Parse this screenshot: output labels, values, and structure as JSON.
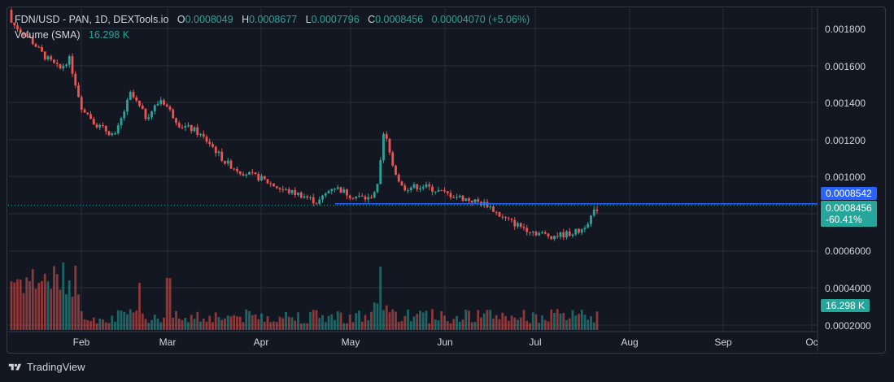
{
  "header": {
    "symbol": "FDN/USD - PAN, 1D, DEXTools.io",
    "o_label": "O",
    "o_value": "0.0008049",
    "h_label": "H",
    "h_value": "0.0008677",
    "l_label": "L",
    "l_value": "0.0007796",
    "c_label": "C",
    "c_value": "0.0008456",
    "change": "0.00004070 (+5.06%)"
  },
  "volume_legend": {
    "label": "Volume (SMA)",
    "value": "16.298 K"
  },
  "price_axis": [
    "0.001800",
    "0.001600",
    "0.001400",
    "0.001200",
    "0.001000",
    "0.0006000",
    "0.0004000",
    "0.0002000"
  ],
  "badges": {
    "line_price": "0.0008542",
    "last_price": "0.0008456",
    "last_change": "-60.41%",
    "volume": "16.298 K"
  },
  "time_axis": [
    "Feb",
    "Mar",
    "Apr",
    "May",
    "Jun",
    "Jul",
    "Aug",
    "Sep",
    "Oc"
  ],
  "footer": {
    "brand": "TradingView"
  },
  "colors": {
    "up": "#26a69a",
    "down": "#ef5350",
    "line": "#2962ff",
    "bg": "#131722",
    "grid": "#2a2e39"
  },
  "chart_data": {
    "type": "candlestick",
    "title": "FDN/USD - PAN, 1D, DEXTools.io",
    "ylim": [
      0.0002,
      0.0019
    ],
    "horizontal_line": 0.0008542,
    "x_range": [
      "Jan 5",
      "Oct 1"
    ],
    "ohlc_daily_close": [
      {
        "t": "Jan 5",
        "c": 0.0019
      },
      {
        "t": "Jan 10",
        "c": 0.00182
      },
      {
        "t": "Jan 15",
        "c": 0.00175
      },
      {
        "t": "Jan 20",
        "c": 0.00165
      },
      {
        "t": "Jan 25",
        "c": 0.00158
      },
      {
        "t": "Jan 28",
        "c": 0.00164
      },
      {
        "t": "Feb 1",
        "c": 0.00138
      },
      {
        "t": "Feb 6",
        "c": 0.00128
      },
      {
        "t": "Feb 12",
        "c": 0.00122
      },
      {
        "t": "Feb 17",
        "c": 0.00145
      },
      {
        "t": "Feb 22",
        "c": 0.00132
      },
      {
        "t": "Feb 27",
        "c": 0.00142
      },
      {
        "t": "Mar 5",
        "c": 0.00128
      },
      {
        "t": "Mar 10",
        "c": 0.00125
      },
      {
        "t": "Mar 15",
        "c": 0.00118
      },
      {
        "t": "Mar 20",
        "c": 0.00108
      },
      {
        "t": "Mar 25",
        "c": 0.00103
      },
      {
        "t": "Apr 1",
        "c": 0.00099
      },
      {
        "t": "Apr 8",
        "c": 0.00093
      },
      {
        "t": "Apr 15",
        "c": 0.0009
      },
      {
        "t": "Apr 20",
        "c": 0.00086
      },
      {
        "t": "Apr 25",
        "c": 0.00095
      },
      {
        "t": "May 1",
        "c": 0.0009
      },
      {
        "t": "May 7",
        "c": 0.00088
      },
      {
        "t": "May 10",
        "c": 0.00095
      },
      {
        "t": "May 12",
        "c": 0.00125
      },
      {
        "t": "May 15",
        "c": 0.00105
      },
      {
        "t": "May 18",
        "c": 0.00094
      },
      {
        "t": "May 25",
        "c": 0.00095
      },
      {
        "t": "Jun 1",
        "c": 0.00091
      },
      {
        "t": "Jun 8",
        "c": 0.00088
      },
      {
        "t": "Jun 15",
        "c": 0.00085
      },
      {
        "t": "Jun 20",
        "c": 0.00078
      },
      {
        "t": "Jun 25",
        "c": 0.00074
      },
      {
        "t": "Jul 1",
        "c": 0.0007
      },
      {
        "t": "Jul 6",
        "c": 0.00068
      },
      {
        "t": "Jul 11",
        "c": 0.00069
      },
      {
        "t": "Jul 16",
        "c": 0.00071
      },
      {
        "t": "Jul 20",
        "c": 0.0008
      },
      {
        "t": "Jul 22",
        "c": 0.0008456
      }
    ],
    "volume": {
      "series": "Volume (SMA)",
      "last": "16.298 K"
    }
  }
}
